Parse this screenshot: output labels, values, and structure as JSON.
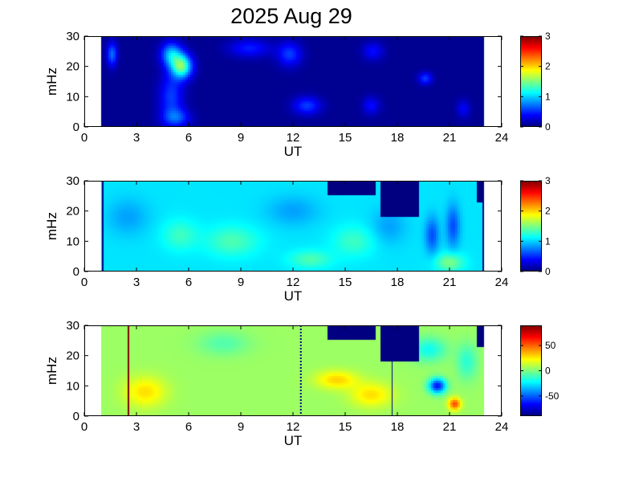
{
  "title": "2025 Aug 29",
  "chart_data": [
    {
      "type": "heatmap",
      "xlabel": "UT",
      "ylabel": "mHz",
      "xlim": [
        0,
        24
      ],
      "ylim": [
        0,
        30
      ],
      "xticks": [
        "0",
        "3",
        "6",
        "9",
        "12",
        "15",
        "18",
        "21",
        "24"
      ],
      "yticks": [
        "0",
        "10",
        "20",
        "30"
      ],
      "data_x_range": [
        1,
        23
      ],
      "colorbar": {
        "range": [
          0,
          3
        ],
        "ticks": [
          "0",
          "1",
          "2",
          "3"
        ],
        "colormap": "jet"
      },
      "background": 0.05,
      "features": [
        {
          "t": 1.6,
          "f": 24,
          "value": 0.7,
          "dt": 0.3,
          "df": 4
        },
        {
          "t": 5.0,
          "f": 24,
          "value": 0.9,
          "dt": 0.6,
          "df": 4
        },
        {
          "t": 5.6,
          "f": 20,
          "value": 1.4,
          "dt": 0.6,
          "df": 4
        },
        {
          "t": 5.0,
          "f": 10,
          "value": 0.55,
          "dt": 0.7,
          "df": 8
        },
        {
          "t": 5.3,
          "f": 3,
          "value": 0.55,
          "dt": 0.8,
          "df": 3
        },
        {
          "t": 9.5,
          "f": 26,
          "value": 0.45,
          "dt": 1.2,
          "df": 3
        },
        {
          "t": 11.8,
          "f": 24,
          "value": 0.55,
          "dt": 0.7,
          "df": 4
        },
        {
          "t": 12.8,
          "f": 7,
          "value": 0.55,
          "dt": 0.8,
          "df": 3
        },
        {
          "t": 16.6,
          "f": 25,
          "value": 0.4,
          "dt": 0.6,
          "df": 3
        },
        {
          "t": 16.5,
          "f": 7,
          "value": 0.4,
          "dt": 0.5,
          "df": 3
        },
        {
          "t": 19.6,
          "f": 16,
          "value": 0.55,
          "dt": 0.4,
          "df": 2
        },
        {
          "t": 21.8,
          "f": 6,
          "value": 0.35,
          "dt": 0.4,
          "df": 3
        }
      ]
    },
    {
      "type": "heatmap",
      "xlabel": "UT",
      "ylabel": "mHz",
      "xlim": [
        0,
        24
      ],
      "ylim": [
        0,
        30
      ],
      "xticks": [
        "0",
        "3",
        "6",
        "9",
        "12",
        "15",
        "18",
        "21",
        "24"
      ],
      "yticks": [
        "0",
        "10",
        "20",
        "30"
      ],
      "data_x_range": [
        1,
        23
      ],
      "colorbar": {
        "range": [
          0,
          3
        ],
        "ticks": [
          "0",
          "1",
          "2",
          "3"
        ],
        "colormap": "jet"
      },
      "background": 1.05,
      "features": [
        {
          "t": 2.5,
          "f": 18,
          "value": 0.85,
          "dt": 1.2,
          "df": 6
        },
        {
          "t": 5.5,
          "f": 12,
          "value": 1.3,
          "dt": 1.0,
          "df": 5
        },
        {
          "t": 8.5,
          "f": 10,
          "value": 1.35,
          "dt": 1.5,
          "df": 5
        },
        {
          "t": 12.0,
          "f": 20,
          "value": 0.85,
          "dt": 1.5,
          "df": 5
        },
        {
          "t": 13.0,
          "f": 4,
          "value": 1.35,
          "dt": 1.2,
          "df": 3
        },
        {
          "t": 15.5,
          "f": 10,
          "value": 1.3,
          "dt": 1.2,
          "df": 5
        },
        {
          "t": 17.5,
          "f": 15,
          "value": 0.85,
          "dt": 1.0,
          "df": 6
        },
        {
          "t": 20.0,
          "f": 12,
          "value": 0.6,
          "dt": 0.4,
          "df": 6
        },
        {
          "t": 21.2,
          "f": 15,
          "value": 0.6,
          "dt": 0.4,
          "df": 7
        },
        {
          "t": 21.0,
          "f": 3,
          "value": 1.5,
          "dt": 0.8,
          "df": 3
        }
      ],
      "gaps": [
        {
          "t0": 14.0,
          "t1": 16.8,
          "f0": 25.0,
          "f1": 30
        },
        {
          "t0": 17.0,
          "t1": 19.3,
          "f0": 18.0,
          "f1": 30
        },
        {
          "t0": 22.6,
          "t1": 23.0,
          "f0": 23.0,
          "f1": 30
        }
      ],
      "lines": [
        {
          "t": 1.05,
          "value": -1
        },
        {
          "t": 22.95,
          "value": -1
        }
      ]
    },
    {
      "type": "heatmap",
      "xlabel": "UT",
      "ylabel": "mHz",
      "xlim": [
        0,
        24
      ],
      "ylim": [
        0,
        30
      ],
      "xticks": [
        "0",
        "3",
        "6",
        "9",
        "12",
        "15",
        "18",
        "21",
        "24"
      ],
      "yticks": [
        "0",
        "10",
        "20",
        "30"
      ],
      "data_x_range": [
        1,
        23
      ],
      "colorbar": {
        "range": [
          -90,
          90
        ],
        "ticks": [
          "50",
          "0",
          "-50"
        ],
        "tick_values": [
          50,
          0,
          -50
        ],
        "colormap": "jet"
      },
      "background": 5,
      "features": [
        {
          "t": 3.5,
          "f": 8,
          "value": 28,
          "dt": 1.2,
          "df": 5
        },
        {
          "t": 14.5,
          "f": 12,
          "value": 30,
          "dt": 1.2,
          "df": 3
        },
        {
          "t": 16.5,
          "f": 7,
          "value": 28,
          "dt": 1.2,
          "df": 4
        },
        {
          "t": 8.0,
          "f": 24,
          "value": -8,
          "dt": 1.5,
          "df": 4
        },
        {
          "t": 20.3,
          "f": 10,
          "value": -65,
          "dt": 0.5,
          "df": 2.5
        },
        {
          "t": 21.3,
          "f": 4,
          "value": 55,
          "dt": 0.35,
          "df": 2
        },
        {
          "t": 19.8,
          "f": 22,
          "value": -20,
          "dt": 1.0,
          "df": 4
        },
        {
          "t": 22.0,
          "f": 18,
          "value": -15,
          "dt": 0.6,
          "df": 6
        }
      ],
      "gaps": [
        {
          "t0": 14.0,
          "t1": 16.8,
          "f0": 25.0,
          "f1": 30
        },
        {
          "t0": 17.0,
          "t1": 19.3,
          "f0": 18.0,
          "f1": 30
        },
        {
          "t0": 22.6,
          "t1": 23.0,
          "f0": 23.0,
          "f1": 30
        }
      ],
      "lines": [
        {
          "t": 2.55,
          "value": 90,
          "width": 2
        },
        {
          "t": 17.7,
          "value": -90,
          "width": 1
        }
      ],
      "dotted_lines": [
        {
          "t": 12.45
        }
      ]
    }
  ]
}
